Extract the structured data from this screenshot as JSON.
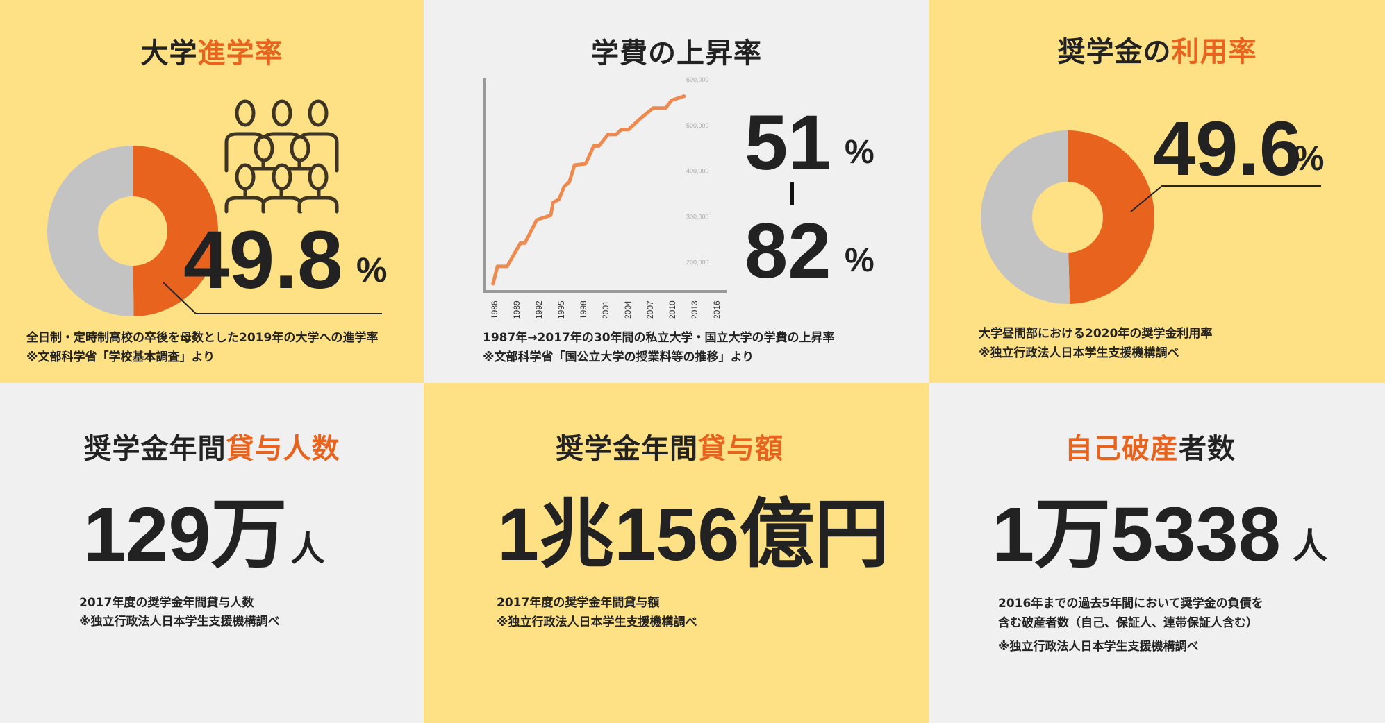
{
  "colors": {
    "yellow": "#fee085",
    "gray_bg": "#f0f0f0",
    "orange": "#e8641e",
    "donut_gray": "#c3c3c3",
    "line": "#ee8a4e",
    "axis": "#999999",
    "text": "#222222",
    "icon": "#3d3424"
  },
  "panels": {
    "enrollment": {
      "title_dark": "大学",
      "title_orange": "進学率",
      "value": "49.8",
      "unit": "%",
      "caption1": "全日制・定時制高校の卒後を母数とした2019年の大学への進学率",
      "caption2": "※文部科学省「学校基本調査」より",
      "icon": "people-group-icon"
    },
    "tuition": {
      "title": "学費の上昇率",
      "value_low": "51",
      "value_high": "82",
      "unit": "%",
      "caption1": "1987年→2017年の30年間の私立大学・国立大学の学費の上昇率",
      "caption2": "※文部科学省「国公立大学の授業料等の推移」より"
    },
    "scholarship_usage": {
      "title_dark": "奨学金の",
      "title_orange": "利用率",
      "value": "49.6",
      "unit": "%",
      "caption1": "大学昼間部における2020年の奨学金利用率",
      "caption2": "※独立行政法人日本学生支援機構調べ"
    },
    "borrowers": {
      "title_dark": "奨学金年間",
      "title_orange": "貸与人数",
      "value": "129万",
      "unit": "人",
      "caption1": "2017年度の奨学金年間貸与人数",
      "caption2": "※独立行政法人日本学生支援機構調べ"
    },
    "loan_amount": {
      "title_dark": "奨学金年間",
      "title_orange": "貸与額",
      "value": "1兆156億円",
      "caption1": "2017年度の奨学金年間貸与額",
      "caption2": "※独立行政法人日本学生支援機構調べ"
    },
    "bankruptcy": {
      "title_orange": "自己破産",
      "title_dark": "者数",
      "value": "1万5338",
      "unit": "人",
      "caption1": "2016年までの過去5年間において奨学金の負債を",
      "caption2": "含む破産者数（自己、保証人、連帯保証人含む）",
      "caption3": "※独立行政法人日本学生支援機構調べ"
    }
  },
  "chart_data": [
    {
      "type": "pie",
      "variant": "donut",
      "values": [
        49.8,
        50.2
      ],
      "highlight_index": 0
    },
    {
      "type": "line",
      "x_ticks": [
        "1986",
        "1989",
        "1992",
        "1995",
        "1998",
        "2001",
        "2004",
        "2007",
        "2010",
        "2013",
        "2016"
      ],
      "y_ticks": [
        "200,000",
        "300,000",
        "400,000",
        "500,000",
        "600,000"
      ],
      "y_tick_values": [
        200000,
        300000,
        400000,
        500000,
        600000
      ],
      "xlim": [
        1986,
        2016
      ],
      "ylim": [
        150000,
        600000
      ],
      "grid": false,
      "x": [
        1985.7,
        1986.3,
        1987.6,
        1989.4,
        1990,
        1991.6,
        1993.5,
        1993.8,
        1994.6,
        1995.3,
        1996,
        1996.7,
        1998.2,
        1999.3,
        2000,
        2001.2,
        2002.3,
        2003,
        2004,
        2005.5,
        2007.3,
        2009,
        2009.8,
        2011.5
      ],
      "y": [
        153000,
        191000,
        191000,
        242000,
        242000,
        293000,
        303000,
        331000,
        338000,
        366000,
        376000,
        413000,
        416000,
        455000,
        455000,
        480000,
        480000,
        491000,
        491000,
        514000,
        538000,
        538000,
        555000,
        564000
      ]
    },
    {
      "type": "pie",
      "variant": "donut",
      "values": [
        49.6,
        50.4
      ],
      "highlight_index": 0
    }
  ]
}
